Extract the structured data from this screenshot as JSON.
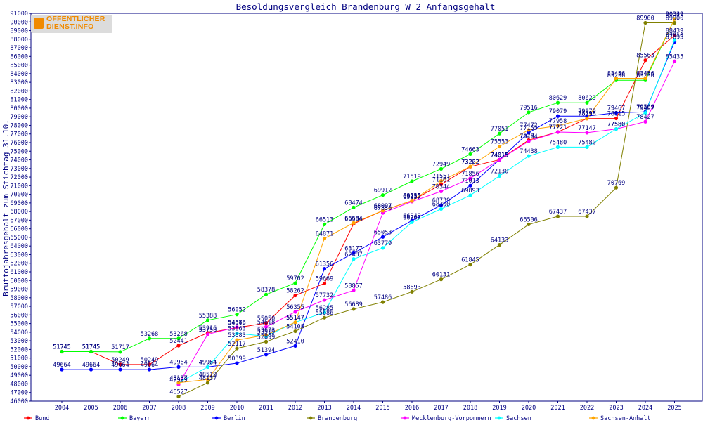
{
  "logo": {
    "line1": "OFFENTLICHER",
    "line2": "DIENST.INFO"
  },
  "chart_data": {
    "type": "line",
    "title": "Besoldungsvergleich Brandenburg W 2 Anfangsgehalt",
    "xlabel": "",
    "ylabel": "Bruttojahresgehalt zum Stichtag 31.10.",
    "x": [
      2004,
      2005,
      2006,
      2007,
      2008,
      2009,
      2010,
      2011,
      2012,
      2013,
      2014,
      2015,
      2016,
      2017,
      2018,
      2019,
      2020,
      2021,
      2022,
      2023,
      2024,
      2025
    ],
    "ylim": [
      46000,
      91000
    ],
    "ytick_step": 1000,
    "grid": false,
    "legend_position": "bottom",
    "series": [
      {
        "name": "Bund",
        "color": "#ff0000",
        "values": [
          51745,
          51745,
          50249,
          50249,
          52441,
          53916,
          54516,
          55050,
          58262,
          59669,
          66584,
          68097,
          69255,
          71161,
          73202,
          74015,
          76291,
          77221,
          78798,
          78815,
          85563,
          88439
        ]
      },
      {
        "name": "Bayern",
        "color": "#00ff00",
        "values": [
          51745,
          51745,
          51717,
          53268,
          53268,
          55388,
          56052,
          58378,
          59702,
          66513,
          68474,
          69912,
          71519,
          72949,
          74663,
          77051,
          79516,
          80629,
          80629,
          83236,
          83236,
          90349
        ]
      },
      {
        "name": "Berlin",
        "color": "#0000ff",
        "values": [
          49664,
          49664,
          49664,
          49664,
          49964,
          49964,
          50399,
          51394,
          52410,
          61356,
          63177,
          65053,
          66949,
          68739,
          71013,
          74015,
          77155,
          79079,
          79079,
          79467,
          79569,
          87693
        ]
      },
      {
        "name": "Brandenburg",
        "color": "#808000",
        "values": [
          null,
          null,
          null,
          null,
          46527,
          48137,
          52117,
          52899,
          54108,
          55686,
          56689,
          57486,
          58693,
          60131,
          61845,
          64133,
          66506,
          67437,
          67437,
          70769,
          89900,
          89900
        ]
      },
      {
        "name": "Mecklenburg-Vorpommern",
        "color": "#ff00ff",
        "values": [
          null,
          null,
          null,
          null,
          47929,
          53758,
          54583,
          54618,
          56355,
          57732,
          58857,
          67836,
          69157,
          70344,
          71856,
          74013,
          76154,
          77221,
          77147,
          77580,
          78427,
          85435
        ]
      },
      {
        "name": "Sachsen",
        "color": "#00ffff",
        "values": [
          null,
          null,
          null,
          null,
          48137,
          49964,
          53863,
          53519,
          55147,
          56285,
          62487,
          63779,
          66767,
          68300,
          69893,
          72130,
          74438,
          75480,
          75480,
          77580,
          79467,
          87910
        ]
      },
      {
        "name": "Sachsen-Anhalt",
        "color": "#ffa500",
        "values": [
          null,
          null,
          null,
          null,
          48137,
          48519,
          53083,
          53673,
          55147,
          64871,
          66684,
          68097,
          69235,
          71551,
          73222,
          75553,
          77472,
          77958,
          78798,
          83456,
          83456,
          90339
        ]
      }
    ]
  }
}
